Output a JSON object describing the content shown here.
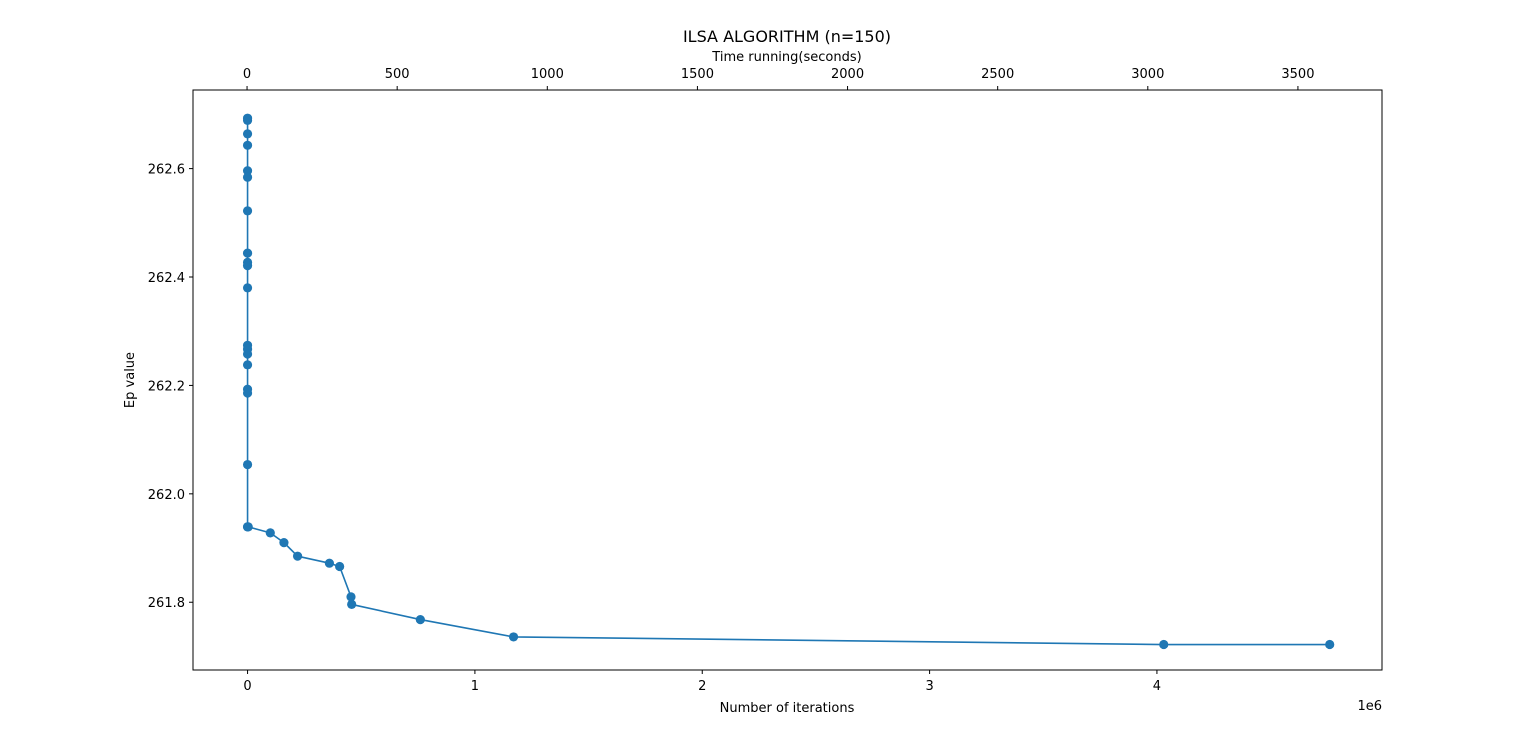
{
  "chart_data": {
    "type": "line",
    "title": "ILSA ALGORITHM (n=150)",
    "xlabel": "Number of iterations",
    "ylabel": "Ep value",
    "x_offset_label": "1e6",
    "top_xlabel": "Time running(seconds)",
    "xlim": [
      -240000,
      4990000
    ],
    "ylim": [
      261.675,
      262.745
    ],
    "top_xlim": [
      -180,
      3780
    ],
    "x_ticks": [
      0,
      1000000,
      2000000,
      3000000,
      4000000
    ],
    "x_tick_labels": [
      "0",
      "1",
      "2",
      "3",
      "4"
    ],
    "y_ticks": [
      261.8,
      262.0,
      262.2,
      262.4,
      262.6
    ],
    "y_tick_labels": [
      "261.8",
      "262.0",
      "262.2",
      "262.4",
      "262.6"
    ],
    "top_x_ticks": [
      0,
      500,
      1000,
      1500,
      2000,
      2500,
      3000,
      3500
    ],
    "top_x_tick_labels": [
      "0",
      "500",
      "1000",
      "1500",
      "2000",
      "2500",
      "3000",
      "3500"
    ],
    "grid": false,
    "series": [
      {
        "color": "#1f77b4",
        "marker": "circle",
        "x": [
          0,
          0,
          0,
          0,
          0,
          0,
          0,
          0,
          0,
          0,
          0,
          0,
          0,
          0,
          0,
          0,
          0,
          0,
          0,
          0,
          3000,
          100000,
          160000,
          220000,
          360000,
          405000,
          455000,
          458000,
          760000,
          1170000,
          4030000,
          4760000
        ],
        "y": [
          262.693,
          262.689,
          262.664,
          262.643,
          262.596,
          262.584,
          262.522,
          262.444,
          262.427,
          262.421,
          262.38,
          262.274,
          262.267,
          262.258,
          262.238,
          262.193,
          262.186,
          262.054,
          261.939,
          261.939,
          261.939,
          261.928,
          261.91,
          261.885,
          261.872,
          261.866,
          261.81,
          261.796,
          261.768,
          261.736,
          261.722,
          261.722
        ]
      }
    ]
  }
}
